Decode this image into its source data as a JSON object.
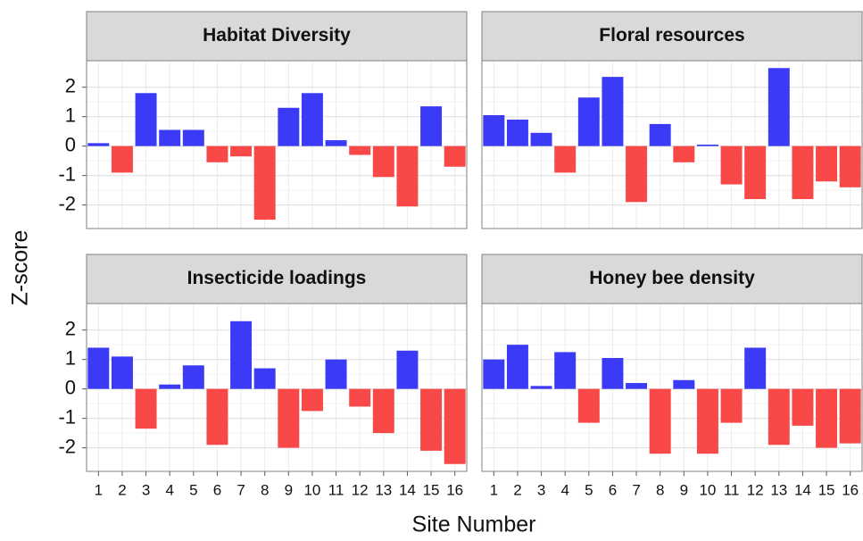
{
  "axes": {
    "xlabel": "Site Number",
    "ylabel": "Z-score"
  },
  "chart_data": [
    {
      "type": "bar",
      "title": "Habitat Diversity",
      "pos_color": "#3b3bf7",
      "neg_color": "#f84848",
      "values": [
        0.1,
        -0.9,
        1.8,
        0.55,
        0.55,
        -0.55,
        -0.35,
        -2.5,
        1.3,
        1.8,
        0.2,
        -0.3,
        -1.05,
        -2.05,
        1.35,
        -0.7
      ],
      "ylim": [
        -2.8,
        2.9
      ],
      "yticks": [
        -2,
        -1,
        0,
        1,
        2
      ],
      "grid": true
    },
    {
      "type": "bar",
      "title": "Floral resources",
      "pos_color": "#3b3bf7",
      "neg_color": "#f84848",
      "values": [
        1.05,
        0.9,
        0.45,
        -0.9,
        1.65,
        2.35,
        -1.9,
        0.75,
        -0.55,
        0.05,
        -1.3,
        -1.8,
        2.65,
        -1.8,
        -1.2,
        -1.4
      ],
      "ylim": [
        -2.8,
        2.9
      ],
      "yticks": [
        -2,
        -1,
        0,
        1,
        2
      ],
      "grid": true
    },
    {
      "type": "bar",
      "title": "Insecticide loadings",
      "pos_color": "#3b3bf7",
      "neg_color": "#f84848",
      "categories": [
        "1",
        "2",
        "3",
        "4",
        "5",
        "6",
        "7",
        "8",
        "9",
        "10",
        "11",
        "12",
        "13",
        "14",
        "15",
        "16"
      ],
      "values": [
        1.4,
        1.1,
        -1.35,
        0.15,
        0.8,
        -1.9,
        2.3,
        0.7,
        -2.0,
        -0.75,
        1.0,
        -0.6,
        -1.5,
        1.3,
        -2.1,
        -2.55
      ],
      "ylim": [
        -2.8,
        2.9
      ],
      "yticks": [
        -2,
        -1,
        0,
        1,
        2
      ],
      "grid": true
    },
    {
      "type": "bar",
      "title": "Honey bee density",
      "pos_color": "#3b3bf7",
      "neg_color": "#f84848",
      "categories": [
        "1",
        "2",
        "3",
        "4",
        "5",
        "6",
        "7",
        "8",
        "9",
        "10",
        "11",
        "12",
        "13",
        "14",
        "15",
        "16"
      ],
      "values": [
        1.0,
        1.5,
        0.1,
        1.25,
        -1.15,
        1.05,
        0.2,
        -2.2,
        0.3,
        -2.2,
        -1.15,
        1.4,
        -1.9,
        -1.25,
        -2.0,
        -1.85
      ],
      "ylim": [
        -2.8,
        2.9
      ],
      "yticks": [
        -2,
        -1,
        0,
        1,
        2
      ],
      "grid": true
    }
  ]
}
